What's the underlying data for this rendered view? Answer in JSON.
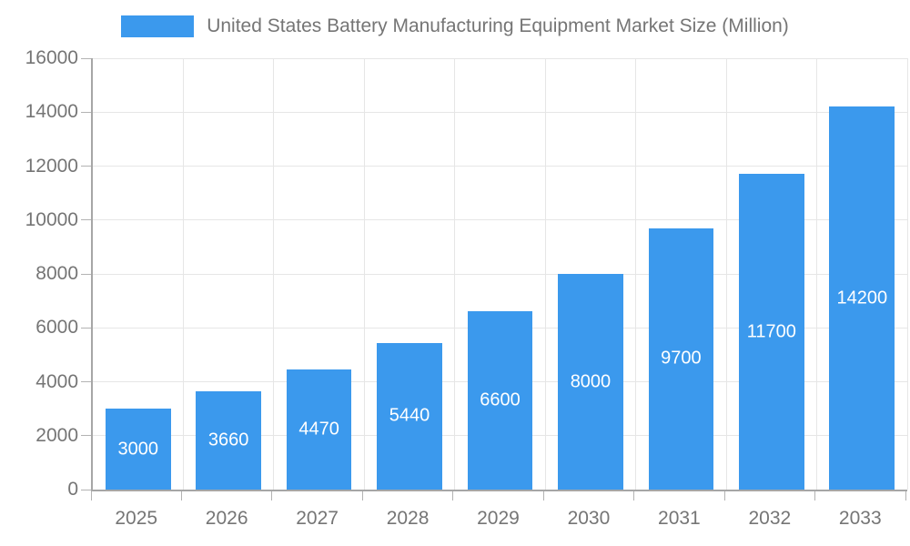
{
  "chart_data": {
    "type": "bar",
    "title": "United States Battery Manufacturing Equipment Market Size (Million)",
    "legend": {
      "position": "top",
      "entries": [
        "United States Battery Manufacturing Equipment Market Size (Million)"
      ]
    },
    "categories": [
      "2025",
      "2026",
      "2027",
      "2028",
      "2029",
      "2030",
      "2031",
      "2032",
      "2033"
    ],
    "values": [
      3000,
      3660,
      4470,
      5440,
      6600,
      8000,
      9700,
      11700,
      14200
    ],
    "xlabel": "",
    "ylabel": "",
    "ylim": [
      0,
      16000
    ],
    "ytick_step": 2000,
    "yticks": [
      0,
      2000,
      4000,
      6000,
      8000,
      10000,
      12000,
      14000,
      16000
    ],
    "grid": true,
    "bar_labels_visible": true,
    "colors": {
      "bar": "#3b99ed",
      "bar_label": "#ffffff",
      "axis_text": "#757575",
      "axis_line": "#a6a6a6",
      "grid_line": "#e6e6e6",
      "tick_line": "#b3b3b3",
      "background": "#ffffff"
    }
  }
}
